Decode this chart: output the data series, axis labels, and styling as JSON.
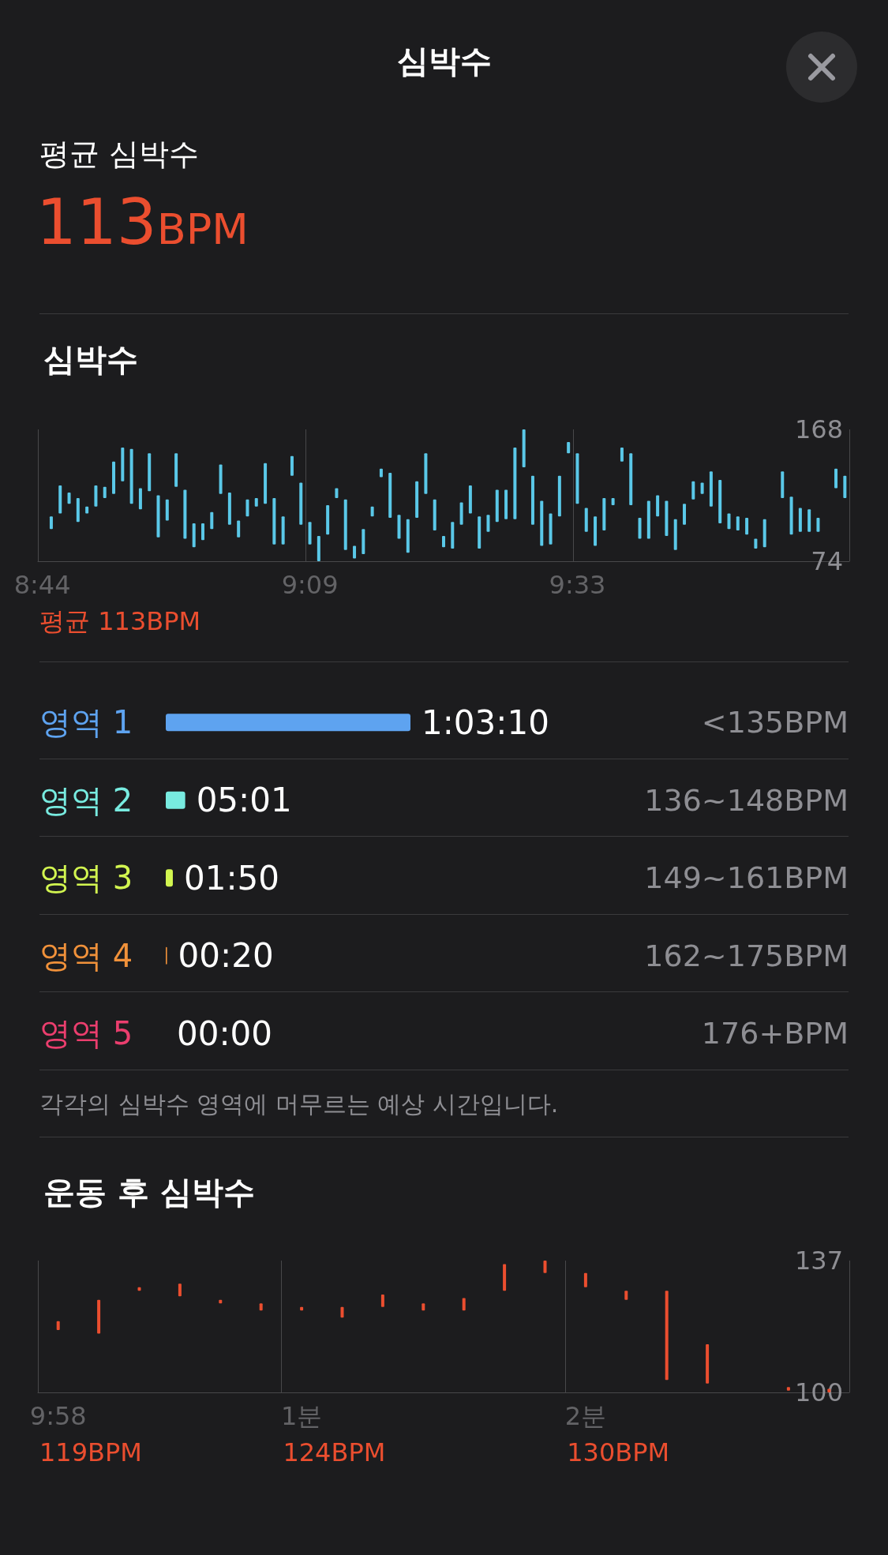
{
  "chart_data": [
    {
      "type": "other",
      "title": "심박수",
      "annotations": [
        "평균 심박수",
        "113BPM"
      ]
    },
    {
      "type": "bar",
      "title": "심박수",
      "grid": "x",
      "color": "#5ac8e8",
      "ylim": [
        74,
        168
      ],
      "yticks": [
        74,
        168
      ],
      "categories": [
        "8:44",
        null,
        null,
        null,
        null,
        null,
        null,
        null,
        null,
        null,
        null,
        null,
        null,
        null,
        null,
        null,
        null,
        null,
        null,
        null,
        null,
        null,
        null,
        null,
        null,
        null,
        null,
        null,
        null,
        null,
        "9:09",
        null,
        null,
        null,
        null,
        null,
        null,
        null,
        null,
        null,
        null,
        null,
        null,
        null,
        null,
        null,
        null,
        null,
        null,
        null,
        null,
        null,
        null,
        null,
        null,
        null,
        null,
        null,
        null,
        null,
        "9:33",
        null,
        null,
        null,
        null,
        null,
        null,
        null,
        null,
        null,
        null,
        null,
        null,
        null,
        null,
        null,
        null,
        null,
        null,
        null,
        null,
        null,
        null,
        null,
        null,
        null,
        null,
        null,
        null,
        null,
        null
      ],
      "base": [
        null,
        97,
        108,
        115,
        102,
        108,
        113,
        119,
        122,
        131,
        115,
        111,
        124,
        91,
        103,
        127,
        90,
        84,
        89,
        97,
        122,
        100,
        91,
        106,
        113,
        115,
        86,
        86,
        135,
        100,
        86,
        74,
        93,
        119,
        82,
        76,
        79,
        106,
        134,
        105,
        90,
        80,
        105,
        122,
        96,
        84,
        83,
        100,
        108,
        83,
        95,
        102,
        104,
        104,
        141,
        100,
        85,
        86,
        106,
        151,
        115,
        95,
        85,
        96,
        114,
        145,
        114,
        90,
        90,
        106,
        92,
        82,
        100,
        118,
        122,
        113,
        101,
        97,
        96,
        93,
        83,
        84,
        null,
        119,
        93,
        95,
        95,
        95,
        null,
        126,
        119
      ],
      "values": [
        null,
        9,
        20,
        8,
        17,
        5,
        15,
        8,
        23,
        24,
        39,
        15,
        27,
        30,
        15,
        24,
        35,
        17,
        12,
        12,
        21,
        23,
        12,
        12,
        6,
        29,
        33,
        20,
        14,
        30,
        16,
        18,
        21,
        7,
        36,
        9,
        18,
        7,
        6,
        32,
        17,
        24,
        26,
        29,
        22,
        8,
        19,
        16,
        20,
        23,
        12,
        23,
        21,
        51,
        27,
        35,
        32,
        22,
        29,
        8,
        36,
        17,
        21,
        23,
        5,
        10,
        37,
        15,
        27,
        15,
        25,
        22,
        15,
        13,
        8,
        25,
        31,
        11,
        10,
        12,
        7,
        20,
        null,
        19,
        27,
        17,
        16,
        10,
        null,
        14,
        16
      ],
      "annotations": [
        "평균 113BPM"
      ]
    },
    {
      "type": "bar",
      "orientation": "horizontal",
      "categories": [
        "영역 1",
        "영역 2",
        "영역 3",
        "영역 4",
        "영역 5"
      ],
      "values": [
        63.17,
        5.02,
        1.83,
        0.33,
        0
      ],
      "value_labels": [
        "1:03:10",
        "05:01",
        "01:50",
        "00:20",
        "00:00"
      ],
      "colors": [
        "#5ea3f0",
        "#78ebe0",
        "#d2f550",
        "#f0913a",
        "#eb3e6e"
      ],
      "annotations": [
        "<135BPM",
        "136~148BPM",
        "149~161BPM",
        "162~175BPM",
        "176+BPM",
        "각각의 심박수 영역에 머무르는 예상 시간입니다."
      ]
    },
    {
      "type": "bar",
      "title": "운동 후 심박수",
      "grid": "x",
      "color": "#eb4e2f",
      "ylim": [
        100,
        137
      ],
      "yticks": [
        100,
        137
      ],
      "categories": [
        "9:58",
        null,
        null,
        null,
        null,
        null,
        "1분",
        null,
        null,
        null,
        null,
        null,
        null,
        "2분",
        null,
        null,
        null,
        null,
        null,
        null
      ],
      "base": [
        117.5,
        116.5,
        128.5,
        127,
        125,
        123,
        123,
        121,
        124,
        123,
        123,
        128.5,
        133.5,
        129.5,
        126,
        103.5,
        102.5,
        null,
        100.5,
        100
      ],
      "values": [
        2.5,
        9.5,
        1,
        3.5,
        1,
        2,
        1,
        3,
        3.5,
        2,
        3.5,
        7.5,
        3.5,
        4,
        2.5,
        25,
        11,
        null,
        1,
        1
      ],
      "annotations": [
        "119BPM",
        "124BPM",
        "130BPM"
      ]
    }
  ]
}
